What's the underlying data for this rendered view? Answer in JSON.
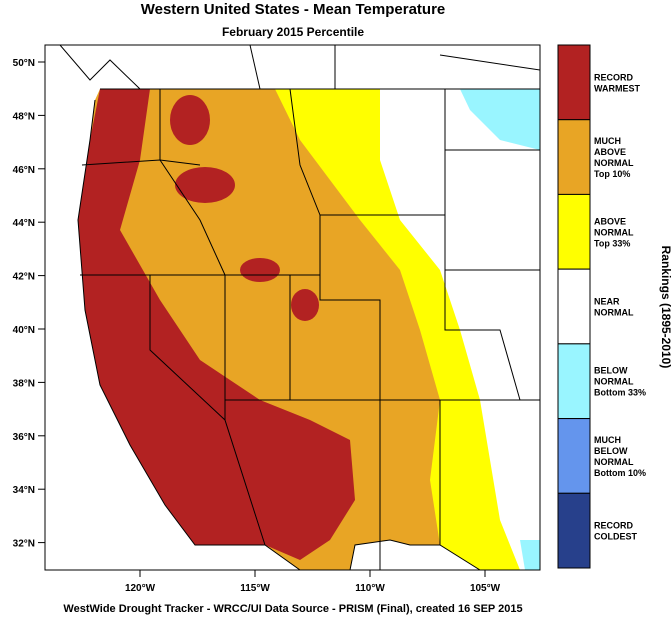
{
  "header": {
    "title": "Western United States - Mean Temperature",
    "subtitle": "February 2015 Percentile"
  },
  "map": {
    "lat_labels": [
      "50°N",
      "48°N",
      "46°N",
      "44°N",
      "42°N",
      "40°N",
      "38°N",
      "36°N",
      "34°N",
      "32°N"
    ],
    "lon_labels": [
      "120°W",
      "115°W",
      "110°W",
      "105°W"
    ]
  },
  "legend": {
    "title": "Rankings (1895-2010)",
    "items": [
      {
        "lines": [
          "RECORD",
          "WARMEST"
        ],
        "color": "#b22222"
      },
      {
        "lines": [
          "MUCH",
          "ABOVE",
          "NORMAL",
          "Top 10%"
        ],
        "color": "#e8a525"
      },
      {
        "lines": [
          "ABOVE",
          "NORMAL",
          "Top 33%"
        ],
        "color": "#ffff00"
      },
      {
        "lines": [
          "NEAR",
          "NORMAL"
        ],
        "color": "#ffffff"
      },
      {
        "lines": [
          "BELOW",
          "NORMAL",
          "Bottom 33%"
        ],
        "color": "#99f5ff"
      },
      {
        "lines": [
          "MUCH",
          "BELOW",
          "NORMAL",
          "Bottom 10%"
        ],
        "color": "#6495ed"
      },
      {
        "lines": [
          "RECORD",
          "COLDEST"
        ],
        "color": "#27408b"
      }
    ]
  },
  "footer": "WestWide Drought Tracker - WRCC/UI  Data Source - PRISM (Final), created 16 SEP 2015"
}
